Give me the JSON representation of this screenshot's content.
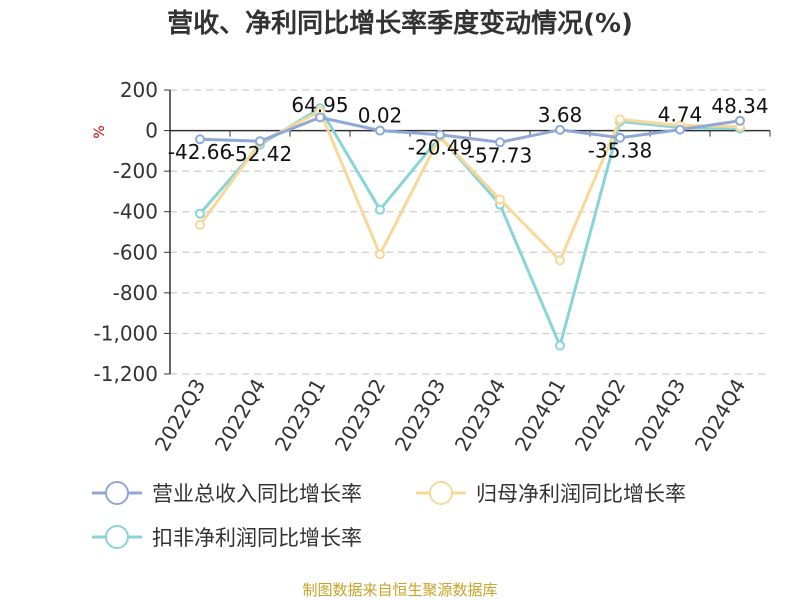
{
  "chart_data": {
    "type": "line",
    "title": "营收、净利同比增长率季度变动情况(%)",
    "ylabel": "%",
    "source": "制图数据来自恒生聚源数据库",
    "categories": [
      "2022Q3",
      "2022Q4",
      "2023Q1",
      "2023Q2",
      "2023Q3",
      "2023Q4",
      "2024Q1",
      "2024Q2",
      "2024Q3",
      "2024Q4"
    ],
    "ylim": [
      -1200,
      200
    ],
    "yticks": [
      200,
      0,
      -200,
      -400,
      -600,
      -800,
      -1000,
      -1200
    ],
    "ytick_labels": [
      "200",
      "0",
      "-200",
      "-400",
      "-600",
      "-800",
      "-1,000",
      "-1,200"
    ],
    "grid": true,
    "legend_position": "bottom",
    "series": [
      {
        "name": "营业总收入同比增长率",
        "color": "#8fa8d8",
        "values": [
          -42.66,
          -52.42,
          64.95,
          0.02,
          -20.49,
          -57.73,
          3.68,
          -35.38,
          4.74,
          48.34
        ],
        "labels": [
          "-42.66",
          "-52.42",
          "64.95",
          "0.02",
          "-20.49",
          "-57.73",
          "3.68",
          "-35.38",
          "4.74",
          "48.34"
        ]
      },
      {
        "name": "归母净利润同比增长率",
        "color": "#f8d898",
        "values": [
          -465,
          -60,
          95,
          -610,
          -30,
          -340,
          -640,
          55,
          25,
          20
        ]
      },
      {
        "name": "扣非净利润同比增长率",
        "color": "#88d4d8",
        "values": [
          -410,
          -70,
          110,
          -390,
          -30,
          -365,
          -1060,
          45,
          15,
          10
        ]
      }
    ]
  }
}
